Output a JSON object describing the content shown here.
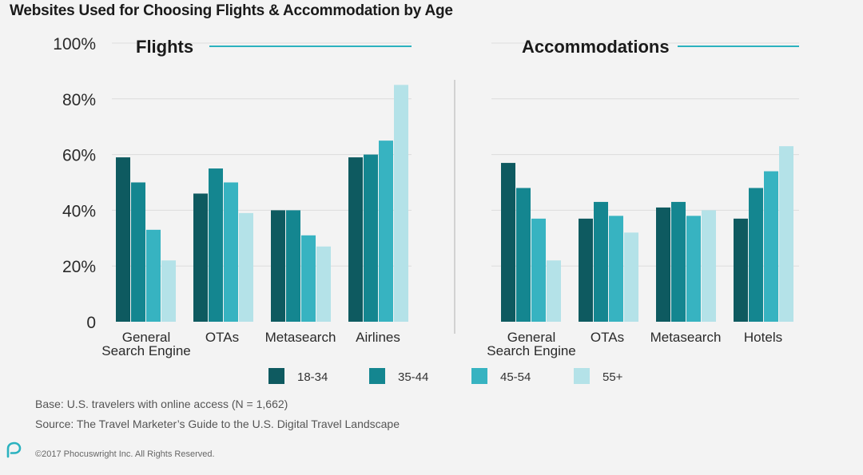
{
  "title": "Websites Used for Choosing Flights & Accommodation by Age",
  "footer": {
    "base": "Base: U.S. travelers with online access (N = 1,662)",
    "source": "Source: The Travel Marketer’s Guide to the U.S. Digital Travel Landscape",
    "copyright": "©2017 Phocuswright Inc. All Rights Reserved."
  },
  "colors": {
    "18-34": "#0e5a60",
    "35-44": "#148690",
    "45-54": "#37b3c1",
    "55+": "#b4e2e8",
    "accent_line": "#2bb2bf"
  },
  "y_ticks": [
    "100%",
    "80%",
    "60%",
    "40%",
    "20%",
    "0"
  ],
  "legend": [
    "18-34",
    "35-44",
    "45-54",
    "55+"
  ],
  "chart_data": [
    {
      "type": "bar",
      "title": "Flights",
      "categories": [
        [
          "General",
          "Search Engine"
        ],
        [
          "OTAs"
        ],
        [
          "Metasearch"
        ],
        [
          "Airlines"
        ]
      ],
      "series": [
        {
          "name": "18-34",
          "values": [
            59,
            46,
            40,
            59
          ]
        },
        {
          "name": "35-44",
          "values": [
            50,
            55,
            40,
            60
          ]
        },
        {
          "name": "45-54",
          "values": [
            33,
            50,
            31,
            65
          ]
        },
        {
          "name": "55+",
          "values": [
            22,
            39,
            27,
            85
          ]
        }
      ],
      "ylim": [
        0,
        100
      ],
      "grid": true
    },
    {
      "type": "bar",
      "title": "Accommodations",
      "categories": [
        [
          "General",
          "Search Engine"
        ],
        [
          "OTAs"
        ],
        [
          "Metasearch"
        ],
        [
          "Hotels"
        ]
      ],
      "series": [
        {
          "name": "18-34",
          "values": [
            57,
            37,
            41,
            37
          ]
        },
        {
          "name": "35-44",
          "values": [
            48,
            43,
            43,
            48
          ]
        },
        {
          "name": "45-54",
          "values": [
            37,
            38,
            38,
            54
          ]
        },
        {
          "name": "55+",
          "values": [
            22,
            32,
            40,
            63
          ]
        }
      ],
      "ylim": [
        0,
        100
      ],
      "grid": true
    }
  ]
}
